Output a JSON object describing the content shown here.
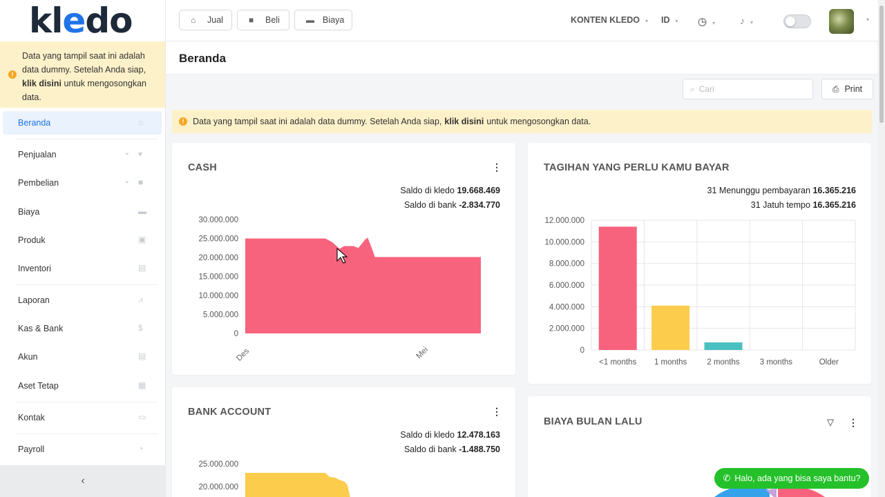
{
  "brand": {
    "logo_text_a": "kl",
    "logo_text_e": "e",
    "logo_text_b": "do"
  },
  "sidebar": {
    "notice_pre": "Data yang tampil saat ini adalah data dummy. Setelah Anda siap, ",
    "notice_link": "klik disini",
    "notice_post": " untuk mengosongkan data.",
    "items": [
      {
        "label": "Beranda",
        "icon": "home-icon"
      },
      {
        "label": "Penjualan",
        "icon": "basket-icon"
      },
      {
        "label": "Pembelian",
        "icon": "bag-icon"
      },
      {
        "label": "Biaya",
        "icon": "card-icon"
      },
      {
        "label": "Produk",
        "icon": "box-icon"
      },
      {
        "label": "Inventori",
        "icon": "warehouse-icon"
      },
      {
        "label": "Laporan",
        "icon": "chart-icon"
      },
      {
        "label": "Kas & Bank",
        "icon": "dollar-icon"
      },
      {
        "label": "Akun",
        "icon": "ledger-icon"
      },
      {
        "label": "Aset Tetap",
        "icon": "building-icon"
      },
      {
        "label": "Kontak",
        "icon": "id-card-icon"
      },
      {
        "label": "Payroll",
        "icon": "payroll-icon"
      }
    ],
    "collapse_glyph": "‹"
  },
  "topbar": {
    "jual": "Jual",
    "beli": "Beli",
    "biaya": "Biaya",
    "company": "KONTEN KLEDO",
    "lang": "ID"
  },
  "page": {
    "title": "Beranda"
  },
  "toolbar": {
    "search_placeholder": "Cari",
    "print": "Print"
  },
  "notice": {
    "pre": "Data yang tampil saat ini adalah data dummy. Setelah Anda siap,",
    "link": "klik disini",
    "post": "untuk mengosongkan data."
  },
  "cash_card": {
    "title": "CASH",
    "saldo_kledo_label": "Saldo di kledo",
    "saldo_kledo_value": "19.668.469",
    "saldo_bank_label": "Saldo di bank",
    "saldo_bank_value": "-2.834.770"
  },
  "tagihan_card": {
    "title": "TAGIHAN YANG PERLU KAMU BAYAR",
    "waiting_label": "31 Menunggu pembayaran",
    "waiting_value": "16.365.216",
    "due_label": "31 Jatuh tempo",
    "due_value": "16.365.216"
  },
  "bank_card": {
    "title": "BANK ACCOUNT",
    "saldo_kledo_label": "Saldo di kledo",
    "saldo_kledo_value": "12.478.163",
    "saldo_bank_label": "Saldo di bank",
    "saldo_bank_value": "-1.488.750"
  },
  "biaya_card": {
    "title": "BIAYA BULAN LALU"
  },
  "chat": {
    "label": "Halo, ada yang bisa saya bantu?"
  },
  "colors": {
    "accent": "#1f74e8",
    "pink": "#f7637d",
    "yellow": "#fccc4d",
    "teal": "#4bc0c0",
    "notice": "#fdf1c9"
  },
  "chart_data": [
    {
      "type": "area",
      "title": "CASH",
      "x_tick_labels": [
        "Des",
        "Mei"
      ],
      "ylim": [
        0,
        30000000
      ],
      "y_ticks": [
        "30.000.000",
        "25.000.000",
        "20.000.000",
        "15.000.000",
        "10.000.000",
        "5.000.000",
        "0"
      ],
      "points": [
        [
          0,
          25000000
        ],
        [
          0.34,
          25000000
        ],
        [
          0.37,
          24000000
        ],
        [
          0.4,
          22300000
        ],
        [
          0.42,
          23000000
        ],
        [
          0.46,
          23000000
        ],
        [
          0.48,
          22500000
        ],
        [
          0.51,
          24800000
        ],
        [
          0.52,
          25200000
        ],
        [
          0.54,
          22000000
        ],
        [
          0.55,
          20100000
        ],
        [
          1,
          20100000
        ]
      ],
      "color": "#f7637d"
    },
    {
      "type": "bar",
      "title": "TAGIHAN YANG PERLU KAMU BAYAR",
      "categories": [
        "<1 months",
        "1 months",
        "2 months",
        "3 months",
        "Older"
      ],
      "values": [
        11400000,
        4100000,
        700000,
        0,
        0
      ],
      "colors": [
        "#f7637d",
        "#fccc4d",
        "#4bc0c0",
        "#a0a0a0",
        "#a0a0a0"
      ],
      "ylim": [
        0,
        12000000
      ],
      "y_ticks": [
        "12.000.000",
        "10.000.000",
        "8.000.000",
        "6.000.000",
        "4.000.000",
        "2.000.000",
        "0"
      ]
    },
    {
      "type": "area",
      "title": "BANK ACCOUNT",
      "y_ticks_visible": [
        "25.000.000",
        "20.000.000"
      ],
      "color": "#fccc4d"
    }
  ]
}
